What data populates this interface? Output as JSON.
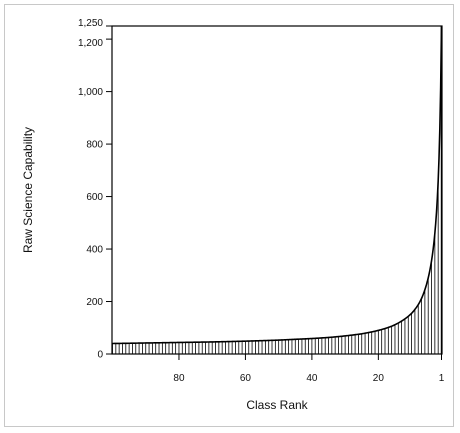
{
  "chart_data": {
    "type": "bar",
    "xlabel": "Class Rank",
    "ylabel": "Raw Science Capability",
    "x_reversed": true,
    "xlim": [
      100,
      1
    ],
    "ylim": [
      0,
      1250
    ],
    "x_ticks": [
      80,
      60,
      40,
      20,
      1
    ],
    "y_ticks": [
      0,
      200,
      400,
      600,
      800,
      1000,
      1200,
      1250
    ],
    "y_tick_labels": [
      "0",
      "200",
      "400",
      "600",
      "800",
      "1,000",
      "1,200",
      "1,250"
    ],
    "ranks": [
      1,
      2,
      3,
      4,
      5,
      6,
      7,
      8,
      9,
      10,
      12,
      14,
      16,
      18,
      20,
      25,
      30,
      35,
      40,
      45,
      50,
      60,
      70,
      80,
      90,
      100
    ],
    "values": [
      1250,
      660,
      460,
      355,
      290,
      245,
      212,
      188,
      170,
      155,
      134,
      118,
      106,
      97,
      90,
      77,
      69,
      63,
      59,
      56,
      53,
      49,
      46,
      44,
      42,
      40
    ],
    "bar_color": "#000000",
    "grid": false,
    "legend": "none"
  }
}
